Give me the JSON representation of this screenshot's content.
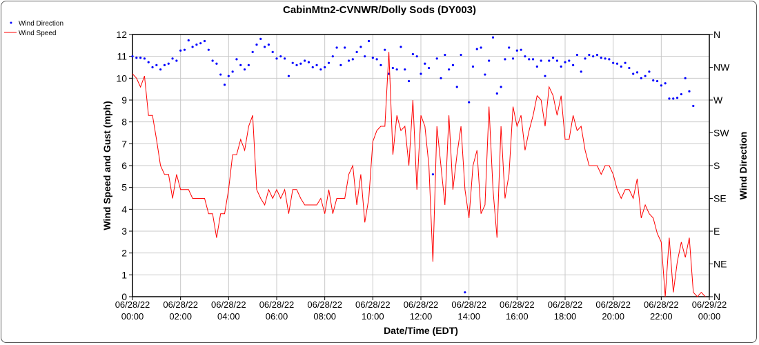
{
  "chart_data": {
    "type": "line",
    "title": "CabinMtn2-CVNWR/Dolly Sods (DY003)",
    "xlabel": "Date/Time (EDT)",
    "ylabel": "Wind Speed and Gust (mph)",
    "y2label": "Wind Direction",
    "ylim": [
      0,
      12
    ],
    "y2lim_deg": [
      0,
      360
    ],
    "xlim_hours": [
      0,
      24
    ],
    "interval_minutes": 10,
    "grid": true,
    "legend_placement": "top-left",
    "colors": {
      "direction": "#0000ff",
      "speed": "#ff0000"
    },
    "yticks": [
      "0",
      "1",
      "2",
      "3",
      "4",
      "5",
      "6",
      "7",
      "8",
      "9",
      "10",
      "11",
      "12"
    ],
    "y2ticks": [
      "N",
      "NE",
      "E",
      "SE",
      "S",
      "SW",
      "W",
      "NW",
      "N"
    ],
    "xticks": [
      [
        "06/28/22",
        "00:00"
      ],
      [
        "06/28/22",
        "02:00"
      ],
      [
        "06/28/22",
        "04:00"
      ],
      [
        "06/28/22",
        "06:00"
      ],
      [
        "06/28/22",
        "08:00"
      ],
      [
        "06/28/22",
        "10:00"
      ],
      [
        "06/28/22",
        "12:00"
      ],
      [
        "06/28/22",
        "14:00"
      ],
      [
        "06/28/22",
        "16:00"
      ],
      [
        "06/28/22",
        "18:00"
      ],
      [
        "06/28/22",
        "20:00"
      ],
      [
        "06/28/22",
        "22:00"
      ],
      [
        "06/29/22",
        "00:00"
      ]
    ],
    "series": [
      {
        "name": "Wind Direction",
        "type": "scatter",
        "axis": "right",
        "unit": "deg",
        "values": [
          330,
          328,
          328,
          327,
          322,
          315,
          318,
          312,
          318,
          320,
          327,
          324,
          338,
          339,
          352,
          343,
          346,
          348,
          351,
          339,
          324,
          320,
          305,
          291,
          303,
          309,
          326,
          318,
          312,
          318,
          336,
          346,
          354,
          343,
          346,
          336,
          327,
          330,
          327,
          303,
          321,
          318,
          320,
          324,
          322,
          315,
          318,
          312,
          315,
          321,
          330,
          342,
          318,
          342,
          324,
          326,
          336,
          343,
          330,
          351,
          328,
          326,
          318,
          339,
          306,
          314,
          312,
          343,
          312,
          296,
          333,
          330,
          306,
          320,
          314,
          168,
          327,
          300,
          332,
          312,
          318,
          288,
          332,
          6,
          267,
          316,
          340,
          342,
          305,
          324,
          356,
          279,
          288,
          326,
          342,
          327,
          338,
          339,
          330,
          326,
          326,
          316,
          324,
          303,
          324,
          328,
          324,
          316,
          322,
          324,
          318,
          332,
          309,
          327,
          332,
          330,
          332,
          328,
          327,
          326,
          321,
          320,
          316,
          321,
          314,
          306,
          308,
          300,
          303,
          309,
          297,
          296,
          290,
          293,
          272,
          272,
          273,
          278,
          300,
          282,
          262
        ]
      },
      {
        "name": "Wind Speed",
        "type": "line",
        "axis": "left",
        "unit": "mph",
        "values": [
          10.2,
          10.0,
          9.6,
          10.1,
          8.3,
          8.3,
          7.2,
          6.0,
          5.6,
          5.6,
          4.5,
          5.6,
          4.9,
          4.9,
          4.9,
          4.5,
          4.5,
          4.5,
          4.5,
          3.8,
          3.8,
          2.7,
          3.8,
          3.8,
          4.9,
          6.5,
          6.5,
          7.2,
          6.7,
          7.8,
          8.3,
          4.9,
          4.5,
          4.2,
          4.9,
          4.5,
          4.9,
          4.5,
          4.9,
          3.8,
          4.9,
          4.9,
          4.5,
          4.2,
          4.2,
          4.2,
          4.2,
          4.5,
          3.8,
          4.9,
          3.8,
          4.5,
          4.5,
          4.5,
          5.6,
          6.0,
          4.2,
          5.6,
          3.4,
          4.5,
          7.1,
          7.6,
          7.8,
          7.8,
          11.2,
          6.5,
          8.3,
          7.6,
          7.8,
          6.0,
          9.0,
          4.9,
          8.3,
          7.8,
          6.0,
          1.6,
          7.8,
          6.0,
          4.2,
          8.3,
          4.9,
          6.5,
          7.8,
          4.9,
          3.6,
          6.0,
          6.7,
          3.8,
          4.2,
          8.7,
          4.9,
          2.7,
          7.8,
          4.5,
          5.6,
          8.7,
          7.8,
          8.3,
          6.7,
          7.6,
          8.3,
          9.2,
          9.0,
          7.8,
          9.6,
          9.2,
          8.3,
          9.2,
          7.2,
          7.2,
          8.3,
          7.6,
          7.8,
          6.7,
          6.0,
          6.0,
          6.0,
          5.6,
          6.0,
          6.0,
          5.6,
          4.9,
          4.5,
          4.9,
          4.9,
          4.5,
          5.4,
          3.6,
          4.2,
          3.8,
          3.6,
          2.9,
          2.5,
          0.0,
          2.7,
          0.2,
          1.6,
          2.5,
          1.8,
          2.7,
          0.2,
          0.0,
          0.2,
          0.0
        ]
      }
    ]
  }
}
